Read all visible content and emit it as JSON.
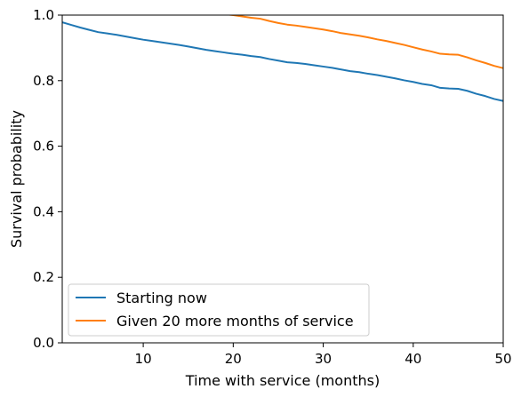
{
  "chart_data": {
    "type": "line",
    "xlabel": "Time with service (months)",
    "ylabel": "Survival probability",
    "xlim": [
      1,
      50
    ],
    "ylim": [
      0.0,
      1.0
    ],
    "x_ticks": [
      10,
      20,
      30,
      40,
      50
    ],
    "y_ticks": [
      0.0,
      0.2,
      0.4,
      0.6,
      0.8,
      1.0
    ],
    "x_tick_labels": [
      "10",
      "20",
      "30",
      "40",
      "50"
    ],
    "y_tick_labels": [
      "0.0",
      "0.2",
      "0.4",
      "0.6",
      "0.8",
      "1.0"
    ],
    "grid": false,
    "legend_position": "lower-left",
    "series": [
      {
        "name": "Starting now",
        "color": "#1f77b4",
        "x": [
          1,
          2,
          3,
          4,
          5,
          6,
          7,
          8,
          9,
          10,
          11,
          12,
          13,
          14,
          15,
          16,
          17,
          18,
          19,
          20,
          21,
          22,
          23,
          24,
          25,
          26,
          27,
          28,
          29,
          30,
          31,
          32,
          33,
          34,
          35,
          36,
          37,
          38,
          39,
          40,
          41,
          42,
          43,
          44,
          45,
          46,
          47,
          48,
          49,
          50
        ],
        "y": [
          0.978,
          0.97,
          0.962,
          0.955,
          0.948,
          0.944,
          0.94,
          0.935,
          0.93,
          0.925,
          0.921,
          0.917,
          0.913,
          0.909,
          0.904,
          0.899,
          0.894,
          0.89,
          0.886,
          0.882,
          0.879,
          0.875,
          0.872,
          0.866,
          0.861,
          0.856,
          0.854,
          0.851,
          0.847,
          0.843,
          0.839,
          0.834,
          0.829,
          0.826,
          0.821,
          0.817,
          0.812,
          0.807,
          0.801,
          0.796,
          0.79,
          0.786,
          0.778,
          0.776,
          0.775,
          0.769,
          0.76,
          0.753,
          0.744,
          0.738
        ]
      },
      {
        "name": "Given 20 more months of service",
        "color": "#ff7f0e",
        "x": [
          18,
          19,
          20,
          21,
          22,
          23,
          24,
          25,
          26,
          27,
          28,
          29,
          30,
          31,
          32,
          33,
          34,
          35,
          36,
          37,
          38,
          39,
          40,
          41,
          42,
          43,
          44,
          45,
          46,
          47,
          48,
          49,
          50
        ],
        "y": [
          1.005,
          1.003,
          1.0,
          0.996,
          0.992,
          0.989,
          0.982,
          0.976,
          0.971,
          0.968,
          0.964,
          0.96,
          0.956,
          0.951,
          0.945,
          0.941,
          0.937,
          0.932,
          0.926,
          0.921,
          0.915,
          0.909,
          0.902,
          0.895,
          0.889,
          0.882,
          0.88,
          0.879,
          0.871,
          0.862,
          0.854,
          0.845,
          0.838
        ]
      }
    ]
  }
}
